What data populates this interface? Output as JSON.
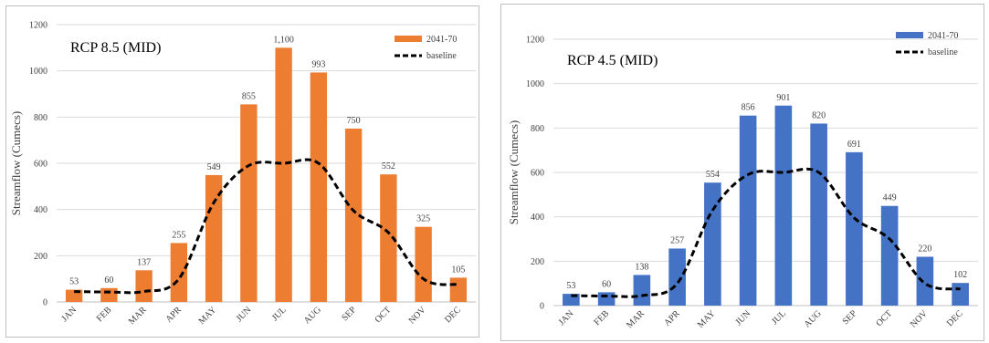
{
  "chart_data": [
    {
      "type": "bar",
      "title": "RCP 8.5 (MID)",
      "ylabel": "Streamflow (Cumecs)",
      "xlabel": "",
      "ylim": [
        0,
        1200
      ],
      "yticks": [
        "0",
        "200",
        "400",
        "600",
        "800",
        "1000",
        "1200"
      ],
      "categories": [
        "JAN",
        "FEB",
        "MAR",
        "APR",
        "MAY",
        "JUN",
        "JUL",
        "AUG",
        "SEP",
        "OCT",
        "NOV",
        "DEC"
      ],
      "series": [
        {
          "name": "2041-70",
          "kind": "bar",
          "color": "#ed7d31",
          "values": [
            53,
            60,
            137,
            255,
            549,
            855,
            1100,
            993,
            750,
            552,
            325,
            105
          ],
          "labels": [
            "53",
            "60",
            "137",
            "255",
            "549",
            "855",
            "1,100",
            "993",
            "750",
            "552",
            "325",
            "105"
          ]
        },
        {
          "name": "baseline",
          "kind": "line",
          "style": "dashed",
          "color": "#000000",
          "values": [
            45,
            43,
            45,
            100,
            430,
            590,
            600,
            600,
            395,
            300,
            100,
            75
          ]
        }
      ],
      "grid": true,
      "legend": "top-right"
    },
    {
      "type": "bar",
      "title": "RCP 4.5 (MID)",
      "ylabel": "Streamflow (Cumecs)",
      "xlabel": "",
      "ylim": [
        0,
        1200
      ],
      "yticks": [
        "0",
        "200",
        "400",
        "600",
        "800",
        "1000",
        "1200"
      ],
      "categories": [
        "JAN",
        "FEB",
        "MAR",
        "APR",
        "MAY",
        "JUN",
        "JUL",
        "AUG",
        "SEP",
        "OCT",
        "NOV",
        "DEC"
      ],
      "series": [
        {
          "name": "2041-70",
          "kind": "bar",
          "color": "#4472c4",
          "values": [
            53,
            60,
            138,
            257,
            554,
            856,
            901,
            820,
            691,
            449,
            220,
            102
          ],
          "labels": [
            "53",
            "60",
            "138",
            "257",
            "554",
            "856",
            "901",
            "820",
            "691",
            "449",
            "220",
            "102"
          ]
        },
        {
          "name": "baseline",
          "kind": "line",
          "style": "dashed",
          "color": "#000000",
          "values": [
            45,
            43,
            45,
            100,
            430,
            590,
            600,
            600,
            395,
            300,
            100,
            75
          ]
        }
      ],
      "grid": true,
      "legend": "top-right"
    }
  ]
}
